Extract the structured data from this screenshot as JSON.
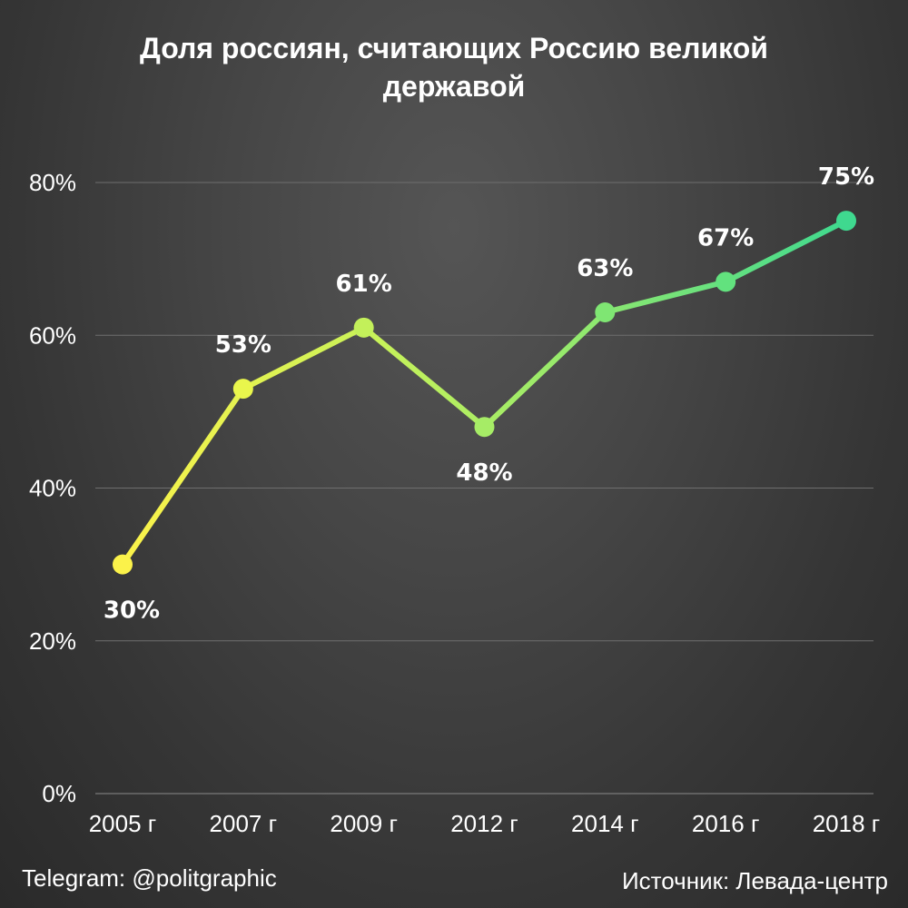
{
  "chart_data": {
    "type": "line",
    "title": "Доля россиян, считающих Россию великой державой",
    "categories": [
      "2005 г",
      "2007 г",
      "2009 г",
      "2012 г",
      "2014 г",
      "2016 г",
      "2018 г"
    ],
    "values": [
      30,
      53,
      61,
      48,
      63,
      67,
      75
    ],
    "data_labels": [
      "30%",
      "53%",
      "61%",
      "48%",
      "63%",
      "67%",
      "75%"
    ],
    "label_side": [
      "below",
      "above",
      "above",
      "below",
      "above",
      "above",
      "above"
    ],
    "ylim": [
      0,
      80
    ],
    "yticks": [
      0,
      20,
      40,
      60,
      80
    ],
    "ytick_labels": [
      "0%",
      "20%",
      "40%",
      "60%",
      "80%"
    ],
    "grid": true,
    "colors": [
      "#fbf24a",
      "#e9f64c",
      "#c3f05a",
      "#a6ec66",
      "#7fe673",
      "#62e27e",
      "#3fd98f"
    ]
  },
  "footer": {
    "left": "Telegram: @politgraphic",
    "right": "Источник: Левада-центр"
  }
}
